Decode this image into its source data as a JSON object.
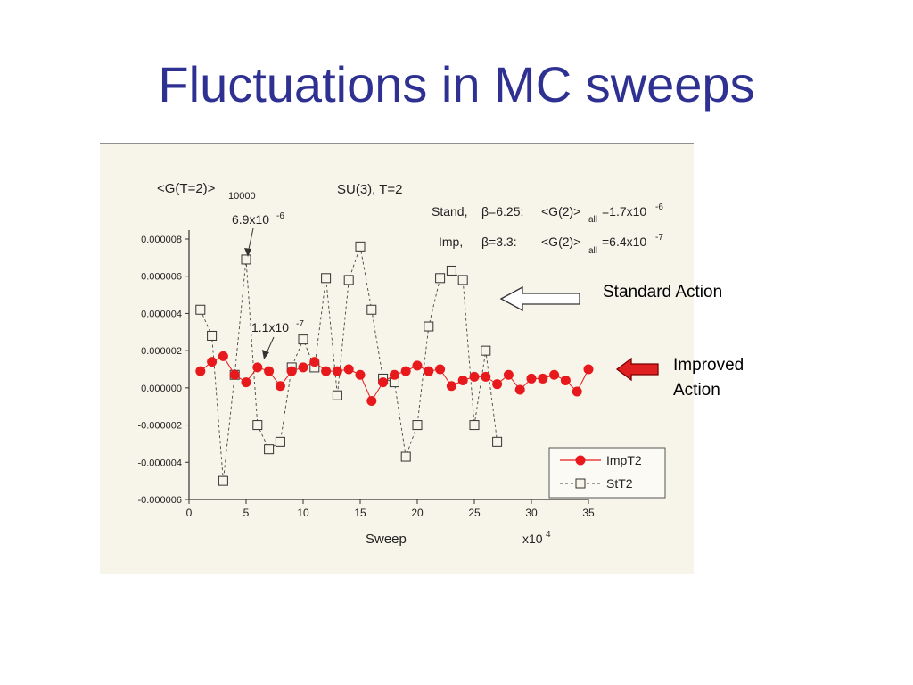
{
  "slide": {
    "title": "Fluctuations in MC sweeps"
  },
  "annotations": {
    "standard_action": "Standard Action",
    "improved_action": "Improved Action"
  },
  "colors": {
    "title": "#2e3192",
    "imp_series": "#e8191c",
    "st_series": "#444444",
    "figure_bg": "#f7f4e9",
    "arrow_red": "#e02020"
  },
  "chart_data": {
    "type": "line",
    "title": "<G(T=2)>",
    "title_subscript": "10000",
    "subtitle": "SU(3), T=2",
    "xlabel": "Sweep",
    "xunit": "x10",
    "xunit_exp": "4",
    "xlim": [
      0,
      35
    ],
    "ylim": [
      -6e-06,
      8e-06
    ],
    "xticks": [
      0,
      5,
      10,
      15,
      20,
      25,
      30,
      35
    ],
    "yticks": [
      -6e-06,
      -4e-06,
      -2e-06,
      0,
      2e-06,
      4e-06,
      6e-06,
      8e-06
    ],
    "ytick_labels": [
      "-0.000006",
      "-0.000004",
      "-0.000002",
      "0.000000",
      "0.000002",
      "0.000004",
      "0.000006",
      "0.000008"
    ],
    "text_notes": {
      "stand_prefix": "Stand,",
      "stand_beta": "β=6.25:",
      "stand_g": "<G(2)>",
      "stand_sub": "all",
      "stand_val": "=1.7x10",
      "stand_exp": "-6",
      "imp_prefix": "Imp,",
      "imp_beta": "β=3.3:",
      "imp_g": "<G(2)>",
      "imp_sub": "all",
      "imp_val": "=6.4x10",
      "imp_exp": "-7",
      "peak_base": "6.9x10",
      "peak_exp": "-6",
      "low_base": "1.1x10",
      "low_exp": "-7"
    },
    "legend_position": "bottom-right",
    "series": [
      {
        "name": "ImpT2",
        "style": "solid-circle",
        "x": [
          1,
          2,
          3,
          4,
          5,
          6,
          7,
          8,
          9,
          10,
          11,
          12,
          13,
          14,
          15,
          16,
          17,
          18,
          19,
          20,
          21,
          22,
          23,
          24,
          25,
          26,
          27,
          28,
          29,
          30,
          31,
          32,
          33,
          34,
          35
        ],
        "y": [
          9e-07,
          1.4e-06,
          1.7e-06,
          7e-07,
          3e-07,
          1.1e-06,
          9e-07,
          1e-07,
          9e-07,
          1.1e-06,
          1.4e-06,
          9e-07,
          9e-07,
          1e-06,
          7e-07,
          -7e-07,
          3e-07,
          7e-07,
          9e-07,
          1.2e-06,
          9e-07,
          1e-06,
          1e-07,
          4e-07,
          6e-07,
          6e-07,
          2e-07,
          7e-07,
          -1e-07,
          5e-07,
          5e-07,
          7e-07,
          4e-07,
          -2e-07,
          1e-06
        ]
      },
      {
        "name": "StT2",
        "style": "dashed-open-square",
        "x": [
          1,
          2,
          3,
          4,
          5,
          6,
          7,
          8,
          9,
          10,
          11,
          12,
          13,
          14,
          15,
          16,
          17,
          18,
          19,
          20,
          21,
          22,
          23,
          24,
          25,
          26,
          27
        ],
        "y": [
          4.2e-06,
          2.8e-06,
          -5e-06,
          7e-07,
          6.9e-06,
          -2e-06,
          -3.3e-06,
          -2.9e-06,
          1.1e-06,
          2.6e-06,
          1.1e-06,
          5.9e-06,
          -4e-07,
          5.8e-06,
          7.6e-06,
          4.2e-06,
          5e-07,
          3e-07,
          -3.7e-06,
          -2e-06,
          3.3e-06,
          5.9e-06,
          6.3e-06,
          5.8e-06,
          -2e-06,
          2e-06,
          -2.9e-06
        ]
      }
    ]
  }
}
